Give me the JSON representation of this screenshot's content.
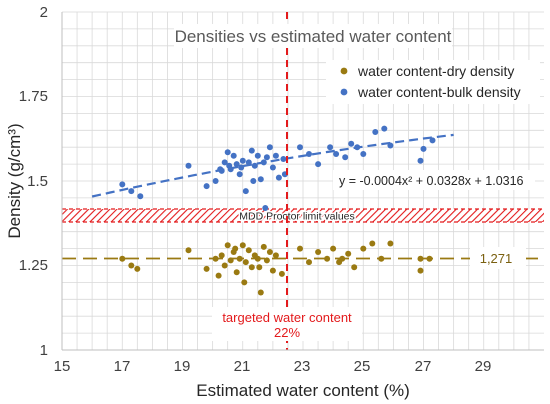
{
  "chart_data": {
    "type": "scatter",
    "title": "Densities vs estimated water content",
    "xlabel": "Estimated water content (%)",
    "ylabel": "Density (g/cm³)",
    "xlim": [
      15,
      31
    ],
    "ylim": [
      1,
      2
    ],
    "x_ticks": [
      "15",
      "17",
      "19",
      "21",
      "23",
      "25",
      "27",
      "29"
    ],
    "y_ticks": [
      "1",
      "1.25",
      "1.5",
      "1.75",
      "2"
    ],
    "grid": true,
    "legend_position": "top-right",
    "series": [
      {
        "name": "water content-dry density",
        "color": "#9a7a12",
        "points": [
          [
            17.0,
            1.27
          ],
          [
            17.3,
            1.25
          ],
          [
            17.5,
            1.24
          ],
          [
            19.2,
            1.295
          ],
          [
            19.8,
            1.24
          ],
          [
            20.1,
            1.27
          ],
          [
            20.3,
            1.28
          ],
          [
            20.4,
            1.25
          ],
          [
            20.5,
            1.31
          ],
          [
            20.6,
            1.265
          ],
          [
            20.7,
            1.29
          ],
          [
            20.8,
            1.23
          ],
          [
            20.9,
            1.27
          ],
          [
            21.0,
            1.31
          ],
          [
            21.1,
            1.26
          ],
          [
            21.2,
            1.295
          ],
          [
            21.3,
            1.245
          ],
          [
            21.4,
            1.28
          ],
          [
            21.5,
            1.27
          ],
          [
            21.6,
            1.17
          ],
          [
            21.7,
            1.305
          ],
          [
            21.8,
            1.265
          ],
          [
            21.9,
            1.29
          ],
          [
            22.0,
            1.235
          ],
          [
            22.1,
            1.28
          ],
          [
            22.3,
            1.225
          ],
          [
            20.2,
            1.22
          ],
          [
            21.05,
            1.2
          ],
          [
            22.9,
            1.3
          ],
          [
            23.2,
            1.26
          ],
          [
            23.5,
            1.29
          ],
          [
            23.8,
            1.27
          ],
          [
            24.0,
            1.3
          ],
          [
            24.2,
            1.26
          ],
          [
            24.5,
            1.285
          ],
          [
            24.7,
            1.245
          ],
          [
            25.0,
            1.3
          ],
          [
            25.3,
            1.315
          ],
          [
            25.6,
            1.27
          ],
          [
            25.9,
            1.315
          ],
          [
            26.9,
            1.27
          ],
          [
            26.9,
            1.235
          ],
          [
            27.2,
            1.27
          ],
          [
            20.75,
            1.3
          ],
          [
            21.55,
            1.245
          ],
          [
            24.3,
            1.27
          ]
        ]
      },
      {
        "name": "water content-bulk density",
        "color": "#4472c4",
        "points": [
          [
            17.0,
            1.49
          ],
          [
            17.3,
            1.47
          ],
          [
            17.6,
            1.455
          ],
          [
            19.2,
            1.545
          ],
          [
            19.8,
            1.485
          ],
          [
            20.1,
            1.5
          ],
          [
            20.3,
            1.53
          ],
          [
            20.4,
            1.555
          ],
          [
            20.5,
            1.585
          ],
          [
            20.6,
            1.535
          ],
          [
            20.7,
            1.575
          ],
          [
            20.8,
            1.55
          ],
          [
            20.9,
            1.52
          ],
          [
            21.0,
            1.56
          ],
          [
            21.1,
            1.47
          ],
          [
            21.2,
            1.555
          ],
          [
            21.3,
            1.59
          ],
          [
            21.4,
            1.545
          ],
          [
            21.5,
            1.575
          ],
          [
            21.6,
            1.505
          ],
          [
            21.7,
            1.555
          ],
          [
            21.8,
            1.57
          ],
          [
            21.9,
            1.6
          ],
          [
            22.0,
            1.54
          ],
          [
            22.1,
            1.575
          ],
          [
            22.2,
            1.51
          ],
          [
            22.4,
            1.52
          ],
          [
            20.95,
            1.54
          ],
          [
            21.75,
            1.42
          ],
          [
            21.35,
            1.5
          ],
          [
            22.9,
            1.6
          ],
          [
            23.2,
            1.58
          ],
          [
            23.5,
            1.55
          ],
          [
            23.9,
            1.6
          ],
          [
            24.1,
            1.58
          ],
          [
            24.4,
            1.57
          ],
          [
            24.6,
            1.61
          ],
          [
            24.8,
            1.6
          ],
          [
            25.0,
            1.58
          ],
          [
            25.4,
            1.645
          ],
          [
            25.7,
            1.655
          ],
          [
            25.9,
            1.605
          ],
          [
            26.9,
            1.56
          ],
          [
            27.0,
            1.595
          ],
          [
            27.3,
            1.62
          ],
          [
            20.25,
            1.535
          ],
          [
            20.55,
            1.545
          ],
          [
            22.35,
            1.565
          ]
        ]
      }
    ],
    "trendline": {
      "equation": "y = -0.0004x² + 0.0328x + 1.0316",
      "coefficients": [
        -0.0004,
        0.0328,
        1.0316
      ],
      "x_range": [
        16,
        28
      ]
    },
    "reference_lines": {
      "targeted_water_content": {
        "value": 22,
        "label_line1": "targeted water content",
        "label_line2": "22%",
        "color": "#e31a1c"
      },
      "dry_density_mean": {
        "value": 1.271,
        "label": "1,271",
        "color": "#9a7a12"
      },
      "mdd_band": {
        "from": 1.38,
        "to": 1.42,
        "label": "MDD Proctor limit values",
        "color": "#e31a1c"
      }
    }
  }
}
